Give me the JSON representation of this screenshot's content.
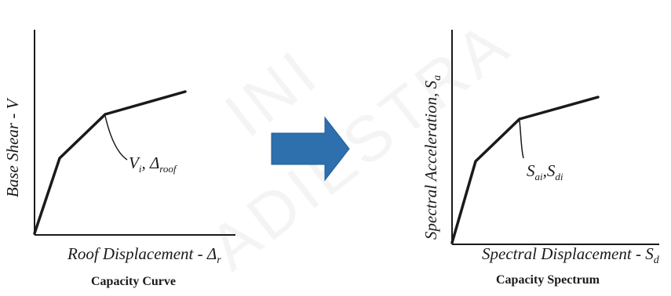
{
  "left_diagram": {
    "y_label": "Base Shear - V",
    "x_label_main": "Roof Displacement - Δ",
    "x_label_sub": "r",
    "point_label_v": "V",
    "point_label_v_sub": "i",
    "point_label_sep": ", ",
    "point_label_d": "Δ",
    "point_label_d_sub": "roof",
    "caption": "Capacity Curve"
  },
  "right_diagram": {
    "y_label_main": "Spectral Acceleration, S",
    "y_label_sub": "a",
    "x_label_main": "Spectral Displacement - S",
    "x_label_sub": "d",
    "point_label_a": "S",
    "point_label_a_sub": "ai",
    "point_label_sep": ",",
    "point_label_d": "S",
    "point_label_d_sub": "di",
    "caption": "Capacity Spectrum"
  },
  "watermark_lines": [
    "INI",
    "ADIESTRA"
  ],
  "colors": {
    "ink": "#1a1a1a",
    "arrow": "#2e6fae",
    "arrow_edge": "#255c93"
  },
  "arrow_icon": "right-arrow-icon"
}
